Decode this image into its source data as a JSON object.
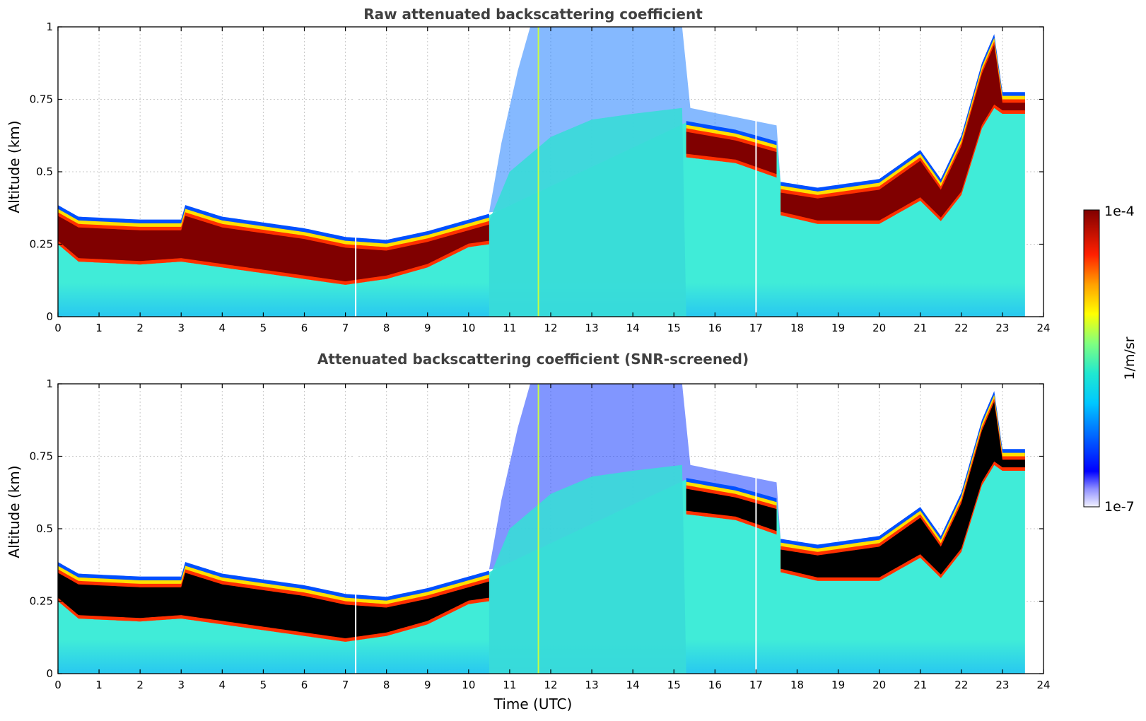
{
  "chart_data": [
    {
      "type": "heatmap",
      "title": "Raw attenuated backscattering coefficient",
      "xlabel": "",
      "ylabel": "Altitude (km)",
      "xlim": [
        0,
        24
      ],
      "ylim": [
        0,
        1
      ],
      "xticks": [
        "0",
        "1",
        "2",
        "3",
        "4",
        "5",
        "6",
        "7",
        "8",
        "9",
        "10",
        "11",
        "12",
        "13",
        "14",
        "15",
        "16",
        "17",
        "18",
        "19",
        "20",
        "21",
        "22",
        "23",
        "24"
      ],
      "yticks": [
        "0",
        "0.25",
        "0.5",
        "0.75",
        "1"
      ],
      "grid": true,
      "screened": false,
      "layer_top_km": [
        [
          0,
          0.36
        ],
        [
          0.5,
          0.32
        ],
        [
          2,
          0.31
        ],
        [
          3,
          0.31
        ],
        [
          3.1,
          0.36
        ],
        [
          4,
          0.32
        ],
        [
          6,
          0.28
        ],
        [
          7,
          0.25
        ],
        [
          8,
          0.24
        ],
        [
          9,
          0.27
        ],
        [
          10,
          0.31
        ],
        [
          10.5,
          0.33
        ],
        [
          15.3,
          0.65
        ],
        [
          16.5,
          0.62
        ],
        [
          17.5,
          0.58
        ],
        [
          17.6,
          0.44
        ],
        [
          18.5,
          0.42
        ],
        [
          20,
          0.45
        ],
        [
          21,
          0.55
        ],
        [
          21.5,
          0.45
        ],
        [
          22,
          0.6
        ],
        [
          22.5,
          0.85
        ],
        [
          22.8,
          0.95
        ],
        [
          23,
          0.75
        ],
        [
          23.55,
          0.75
        ]
      ],
      "layer_base_km": [
        [
          0,
          0.25
        ],
        [
          0.5,
          0.19
        ],
        [
          2,
          0.18
        ],
        [
          3,
          0.19
        ],
        [
          4,
          0.17
        ],
        [
          6,
          0.13
        ],
        [
          7,
          0.11
        ],
        [
          8,
          0.13
        ],
        [
          9,
          0.17
        ],
        [
          10,
          0.24
        ],
        [
          10.5,
          0.25
        ],
        [
          15.3,
          0.55
        ],
        [
          16.5,
          0.53
        ],
        [
          17.5,
          0.48
        ],
        [
          17.6,
          0.35
        ],
        [
          18.5,
          0.32
        ],
        [
          20,
          0.32
        ],
        [
          21,
          0.4
        ],
        [
          21.5,
          0.33
        ],
        [
          22,
          0.42
        ],
        [
          22.5,
          0.65
        ],
        [
          22.8,
          0.72
        ],
        [
          23,
          0.7
        ],
        [
          23.55,
          0.7
        ]
      ],
      "data_end_utc": 23.55
    },
    {
      "type": "heatmap",
      "title": "Attenuated backscattering coefficient (SNR-screened)",
      "xlabel": "Time (UTC)",
      "ylabel": "Altitude (km)",
      "xlim": [
        0,
        24
      ],
      "ylim": [
        0,
        1
      ],
      "xticks": [
        "0",
        "1",
        "2",
        "3",
        "4",
        "5",
        "6",
        "7",
        "8",
        "9",
        "10",
        "11",
        "12",
        "13",
        "14",
        "15",
        "16",
        "17",
        "18",
        "19",
        "20",
        "21",
        "22",
        "23",
        "24"
      ],
      "yticks": [
        "0",
        "0.25",
        "0.5",
        "0.75",
        "1"
      ],
      "grid": true,
      "screened": true,
      "layer_top_km": [
        [
          0,
          0.36
        ],
        [
          0.5,
          0.32
        ],
        [
          2,
          0.31
        ],
        [
          3,
          0.31
        ],
        [
          3.1,
          0.36
        ],
        [
          4,
          0.32
        ],
        [
          6,
          0.28
        ],
        [
          7,
          0.25
        ],
        [
          8,
          0.24
        ],
        [
          9,
          0.27
        ],
        [
          10,
          0.31
        ],
        [
          10.5,
          0.33
        ],
        [
          15.3,
          0.65
        ],
        [
          16.5,
          0.62
        ],
        [
          17.5,
          0.58
        ],
        [
          17.6,
          0.44
        ],
        [
          18.5,
          0.42
        ],
        [
          20,
          0.45
        ],
        [
          21,
          0.55
        ],
        [
          21.5,
          0.45
        ],
        [
          22,
          0.6
        ],
        [
          22.5,
          0.85
        ],
        [
          22.8,
          0.95
        ],
        [
          23,
          0.75
        ],
        [
          23.55,
          0.75
        ]
      ],
      "layer_base_km": [
        [
          0,
          0.25
        ],
        [
          0.5,
          0.19
        ],
        [
          2,
          0.18
        ],
        [
          3,
          0.19
        ],
        [
          4,
          0.17
        ],
        [
          6,
          0.13
        ],
        [
          7,
          0.11
        ],
        [
          8,
          0.13
        ],
        [
          9,
          0.17
        ],
        [
          10,
          0.24
        ],
        [
          10.5,
          0.25
        ],
        [
          15.3,
          0.55
        ],
        [
          16.5,
          0.53
        ],
        [
          17.5,
          0.48
        ],
        [
          17.6,
          0.35
        ],
        [
          18.5,
          0.32
        ],
        [
          20,
          0.32
        ],
        [
          21,
          0.4
        ],
        [
          21.5,
          0.33
        ],
        [
          22,
          0.42
        ],
        [
          22.5,
          0.65
        ],
        [
          22.8,
          0.72
        ],
        [
          23,
          0.7
        ],
        [
          23.55,
          0.7
        ]
      ],
      "data_end_utc": 23.55
    }
  ],
  "colorbar": {
    "max_label": "1e-4",
    "min_label": "1e-7",
    "unit_label": "1/m/sr",
    "colors": [
      "#e6e6fa",
      "#0000ff",
      "#00bfff",
      "#40e0d0",
      "#ffff00",
      "#ff8c00",
      "#ff0000",
      "#8b0000"
    ]
  }
}
